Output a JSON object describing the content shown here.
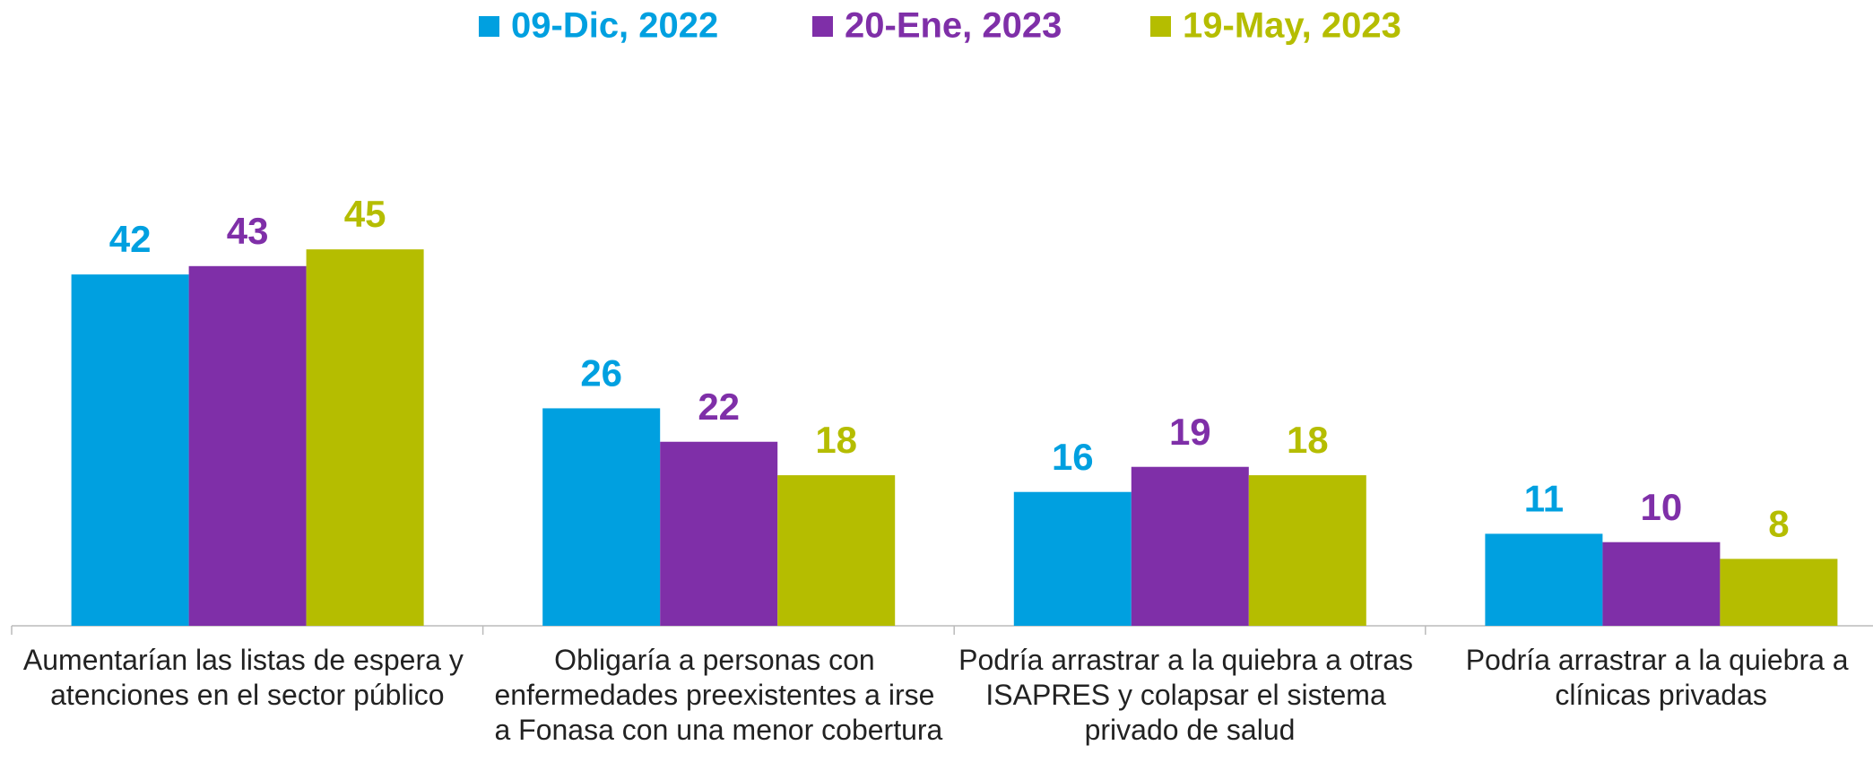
{
  "chart_data": {
    "type": "bar",
    "categories": [
      "Aumentarían las listas de espera y atenciones en el sector público",
      "Obligaría a personas con enfermedades preexistentes a irse a Fonasa con una menor cobertura",
      "Podría arrastrar a la quiebra a otras ISAPRES y colapsar el sistema privado de salud",
      "Podría arrastrar a la quiebra a clínicas privadas"
    ],
    "series": [
      {
        "name": "09-Dic, 2022",
        "color": "#00a0e0",
        "values": [
          42,
          26,
          16,
          11
        ]
      },
      {
        "name": "20-Ene, 2023",
        "color": "#7f2fa8",
        "values": [
          43,
          22,
          19,
          10
        ]
      },
      {
        "name": "19-May, 2023",
        "color": "#b5bd00",
        "values": [
          45,
          18,
          18,
          8
        ]
      }
    ],
    "legend": "top"
  }
}
